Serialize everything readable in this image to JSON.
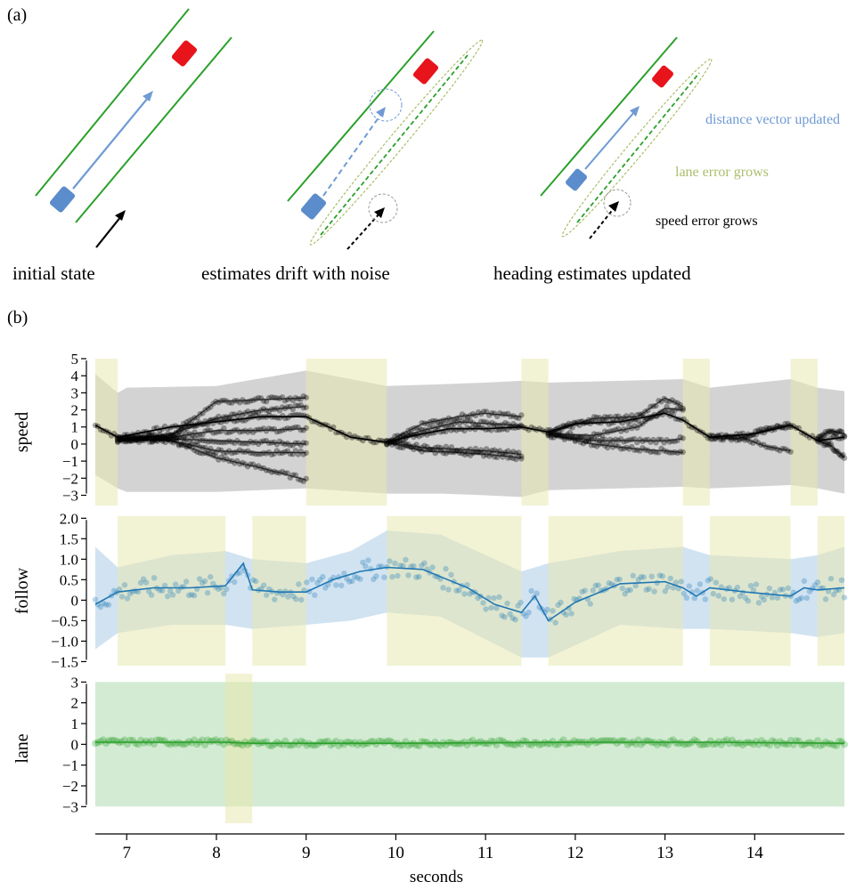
{
  "panel_a": {
    "label": "(a)",
    "captions": [
      "initial state",
      "estimates drift with noise",
      "heading estimates updated"
    ],
    "annotations": {
      "distance": "distance vector updated",
      "lane": "lane error grows",
      "speed": "speed error grows"
    },
    "colors": {
      "road": "#2ca02c",
      "lead_car": "#e8141c",
      "ego_car": "#5b8ccc",
      "distance": "#6f9ad3",
      "lane_error": "#a9bf6b",
      "speed_error": "#000000"
    }
  },
  "panel_b": {
    "label": "(b)",
    "xlabel": "seconds"
  },
  "chart_data": [
    {
      "type": "line",
      "ylabel": "speed",
      "xlim": [
        6.65,
        15.0
      ],
      "ylim": [
        -3.6,
        5
      ],
      "yticks": [
        -3,
        -2,
        -1,
        0,
        1,
        2,
        3,
        4,
        5
      ],
      "color": "#000000",
      "band_color": "#c8c8c8",
      "highlight_color": "#e8e8b0",
      "highlight_intervals": [
        [
          6.65,
          6.9
        ],
        [
          9.0,
          9.9
        ],
        [
          11.4,
          11.7
        ],
        [
          13.2,
          13.5
        ],
        [
          14.4,
          14.7
        ]
      ],
      "band": {
        "x": [
          6.65,
          6.9,
          7.0,
          8.0,
          9.0,
          9.9,
          10.5,
          11.0,
          11.4,
          11.7,
          12.5,
          13.2,
          13.5,
          14.4,
          14.7,
          15.0
        ],
        "upper": [
          4.1,
          3.0,
          3.3,
          3.4,
          4.3,
          3.4,
          3.5,
          3.6,
          3.7,
          3.6,
          3.7,
          3.8,
          3.3,
          3.8,
          3.3,
          3.1
        ],
        "lower": [
          -1.8,
          -2.6,
          -2.8,
          -2.8,
          -2.6,
          -2.9,
          -2.9,
          -3.0,
          -3.1,
          -2.7,
          -2.6,
          -2.5,
          -2.6,
          -2.4,
          -2.6,
          -2.9
        ]
      },
      "series": [
        {
          "x": [
            6.65,
            6.9,
            7.5,
            8.0,
            8.5,
            9.0,
            9.5,
            9.9,
            10.2,
            10.6,
            11.0,
            11.4,
            11.7,
            12.0,
            12.5,
            13.0,
            13.2,
            13.5,
            14.0,
            14.4,
            14.7,
            15.0
          ],
          "values": [
            1.1,
            0.4,
            1.0,
            1.3,
            1.6,
            1.6,
            0.4,
            0.1,
            0.5,
            0.9,
            0.9,
            1.0,
            0.7,
            1.2,
            1.3,
            1.8,
            1.4,
            0.4,
            0.6,
            1.1,
            0.2,
            0.4
          ]
        },
        {
          "x": [
            6.9,
            7.5,
            8.0,
            8.5,
            9.0
          ],
          "values": [
            0.3,
            0.5,
            2.5,
            2.6,
            2.7
          ]
        },
        {
          "x": [
            6.9,
            7.5,
            8.0,
            8.5,
            9.0
          ],
          "values": [
            0.2,
            0.6,
            1.5,
            2.0,
            2.2
          ]
        },
        {
          "x": [
            6.9,
            7.5,
            8.0,
            8.5,
            9.0
          ],
          "values": [
            0.3,
            0.4,
            0.8,
            0.8,
            0.9
          ]
        },
        {
          "x": [
            6.9,
            7.5,
            8.0,
            8.5,
            9.0
          ],
          "values": [
            0.2,
            0.3,
            0.2,
            0.1,
            0.0
          ]
        },
        {
          "x": [
            6.9,
            7.5,
            8.0,
            8.5,
            9.0
          ],
          "values": [
            0.3,
            0.2,
            -0.4,
            -0.5,
            -0.5
          ]
        },
        {
          "x": [
            6.9,
            7.5,
            8.0,
            8.5,
            9.0
          ],
          "values": [
            0.3,
            0.2,
            -0.8,
            -1.4,
            -2.1
          ]
        },
        {
          "x": [
            9.9,
            10.3,
            10.7,
            11.0,
            11.4
          ],
          "values": [
            0.1,
            1.2,
            1.6,
            1.8,
            1.6
          ]
        },
        {
          "x": [
            9.9,
            10.3,
            10.7,
            11.0,
            11.4
          ],
          "values": [
            0.1,
            0.8,
            1.3,
            1.2,
            1.1
          ]
        },
        {
          "x": [
            9.9,
            10.3,
            10.7,
            11.0,
            11.4
          ],
          "values": [
            0.1,
            -0.2,
            -0.3,
            -0.4,
            -0.6
          ]
        },
        {
          "x": [
            9.9,
            10.3,
            10.7,
            11.0,
            11.4
          ],
          "values": [
            0.1,
            -0.4,
            -0.5,
            -0.6,
            -0.8
          ]
        },
        {
          "x": [
            11.7,
            12.2,
            12.7,
            13.0,
            13.2
          ],
          "values": [
            0.6,
            1.5,
            1.6,
            2.7,
            2.2
          ]
        },
        {
          "x": [
            11.7,
            12.2,
            12.7,
            13.0,
            13.2
          ],
          "values": [
            0.6,
            0.5,
            1.0,
            2.1,
            2.0
          ]
        },
        {
          "x": [
            11.7,
            12.2,
            12.7,
            13.0,
            13.2
          ],
          "values": [
            0.5,
            0.2,
            0.2,
            0.2,
            0.3
          ]
        },
        {
          "x": [
            11.7,
            12.2,
            12.7,
            13.0,
            13.2
          ],
          "values": [
            0.6,
            0.0,
            -0.3,
            -0.4,
            -0.5
          ]
        },
        {
          "x": [
            13.5,
            13.8,
            14.1,
            14.4
          ],
          "values": [
            0.4,
            0.3,
            0.8,
            1.2
          ]
        },
        {
          "x": [
            13.5,
            13.8,
            14.1,
            14.4
          ],
          "values": [
            0.4,
            0.5,
            -0.1,
            -0.4
          ]
        },
        {
          "x": [
            14.7,
            14.85,
            15.0
          ],
          "values": [
            0.3,
            0.8,
            0.6
          ]
        },
        {
          "x": [
            14.7,
            14.85,
            15.0
          ],
          "values": [
            0.2,
            -0.1,
            -0.8
          ]
        }
      ]
    },
    {
      "type": "line",
      "ylabel": "follow",
      "xlim": [
        6.65,
        15.0
      ],
      "ylim": [
        -1.6,
        2.05
      ],
      "yticks": [
        -1.5,
        -1.0,
        -0.5,
        0,
        0.5,
        1.0,
        1.5,
        2.0
      ],
      "ytick_labels": [
        "−1.5",
        "−1.0",
        "−0.5",
        "0",
        "0.5",
        "1.0",
        "1.5",
        "2.0"
      ],
      "color": "#1f77b4",
      "band_color": "#c6dced",
      "highlight_color": "#e8e8b0",
      "highlight_intervals": [
        [
          6.9,
          8.1
        ],
        [
          8.4,
          9.0
        ],
        [
          9.9,
          11.4
        ],
        [
          11.7,
          13.2
        ],
        [
          13.5,
          14.4
        ],
        [
          14.7,
          15.0
        ]
      ],
      "band": {
        "x": [
          6.65,
          6.9,
          7.5,
          8.1,
          8.4,
          9.0,
          9.5,
          9.9,
          10.5,
          11.4,
          11.7,
          12.5,
          13.2,
          13.5,
          14.4,
          14.7,
          15.0
        ],
        "upper": [
          1.3,
          0.8,
          1.1,
          1.2,
          1.0,
          0.9,
          1.2,
          1.7,
          1.6,
          0.7,
          0.9,
          1.2,
          1.3,
          1.1,
          1.0,
          1.1,
          1.3
        ],
        "lower": [
          -1.2,
          -0.8,
          -0.6,
          -0.6,
          -0.7,
          -0.6,
          -0.5,
          -0.3,
          -0.4,
          -1.4,
          -1.4,
          -0.6,
          -0.7,
          -0.7,
          -0.8,
          -0.9,
          -0.8
        ]
      },
      "series": [
        {
          "x": [
            6.65,
            6.9,
            7.3,
            7.7,
            8.1,
            8.3,
            8.4,
            8.7,
            9.0,
            9.3,
            9.6,
            9.9,
            10.3,
            10.8,
            11.1,
            11.4,
            11.55,
            11.7,
            12.0,
            12.5,
            13.0,
            13.2,
            13.35,
            13.5,
            13.9,
            14.4,
            14.55,
            14.7,
            15.0
          ],
          "values": [
            -0.1,
            0.2,
            0.3,
            0.3,
            0.35,
            0.9,
            0.25,
            0.2,
            0.2,
            0.5,
            0.7,
            0.8,
            0.75,
            0.3,
            -0.1,
            -0.3,
            0.1,
            -0.5,
            -0.05,
            0.4,
            0.45,
            0.3,
            0.1,
            0.3,
            0.2,
            0.1,
            0.3,
            0.25,
            0.3
          ]
        }
      ]
    },
    {
      "type": "line",
      "ylabel": "lane",
      "xlim": [
        6.65,
        15.0
      ],
      "ylim": [
        -3.8,
        3.4
      ],
      "yticks": [
        -3,
        -2,
        -1,
        0,
        1,
        2,
        3
      ],
      "color": "#2ca02c",
      "band_color": "#c8e6c8",
      "highlight_color": "#e8e8b0",
      "highlight_intervals": [
        [
          8.1,
          8.4
        ]
      ],
      "band": {
        "x": [
          6.65,
          15.0
        ],
        "upper": [
          3.0,
          3.0
        ],
        "lower": [
          -3.0,
          -3.0
        ]
      },
      "series": [
        {
          "x": [
            6.65,
            8.1,
            8.4,
            10.0,
            12.0,
            13.5,
            15.0
          ],
          "values": [
            0.1,
            0.1,
            0.05,
            0.05,
            0.1,
            0.1,
            0.05
          ]
        }
      ]
    }
  ],
  "xaxis": {
    "ticks": [
      7,
      8,
      9,
      10,
      11,
      12,
      13,
      14
    ],
    "label": "seconds"
  }
}
